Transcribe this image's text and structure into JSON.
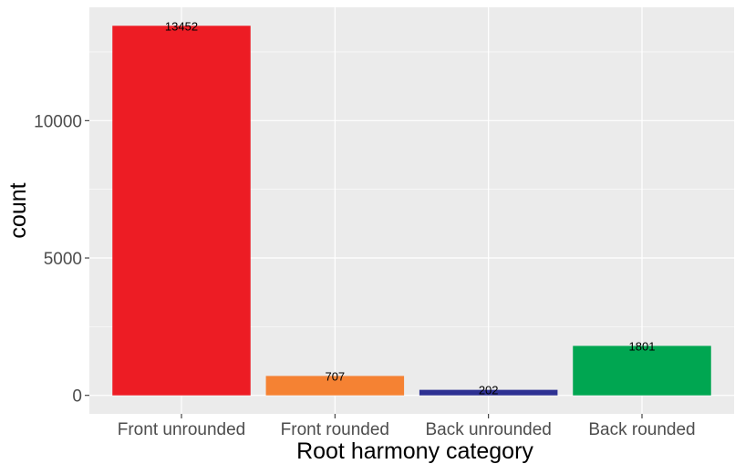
{
  "chart_data": {
    "type": "bar",
    "categories": [
      "Front unrounded",
      "Front rounded",
      "Back unrounded",
      "Back rounded"
    ],
    "values": [
      13452,
      707,
      202,
      1801
    ],
    "data_labels": [
      "13452",
      "707",
      "202",
      "1801"
    ],
    "bar_colors": [
      "#ED1C24",
      "#F58233",
      "#2E3192",
      "#00A651"
    ],
    "title": "",
    "xlabel": "Root harmony category",
    "ylabel": "count",
    "ylim": [
      -673,
      14125
    ],
    "y_ticks": [
      0,
      5000,
      10000
    ],
    "y_tick_labels": [
      "0",
      "5000",
      "10000"
    ],
    "grid": true,
    "legend": "none",
    "panel_background": "#EBEBEB",
    "grid_color": "#FFFFFF"
  }
}
